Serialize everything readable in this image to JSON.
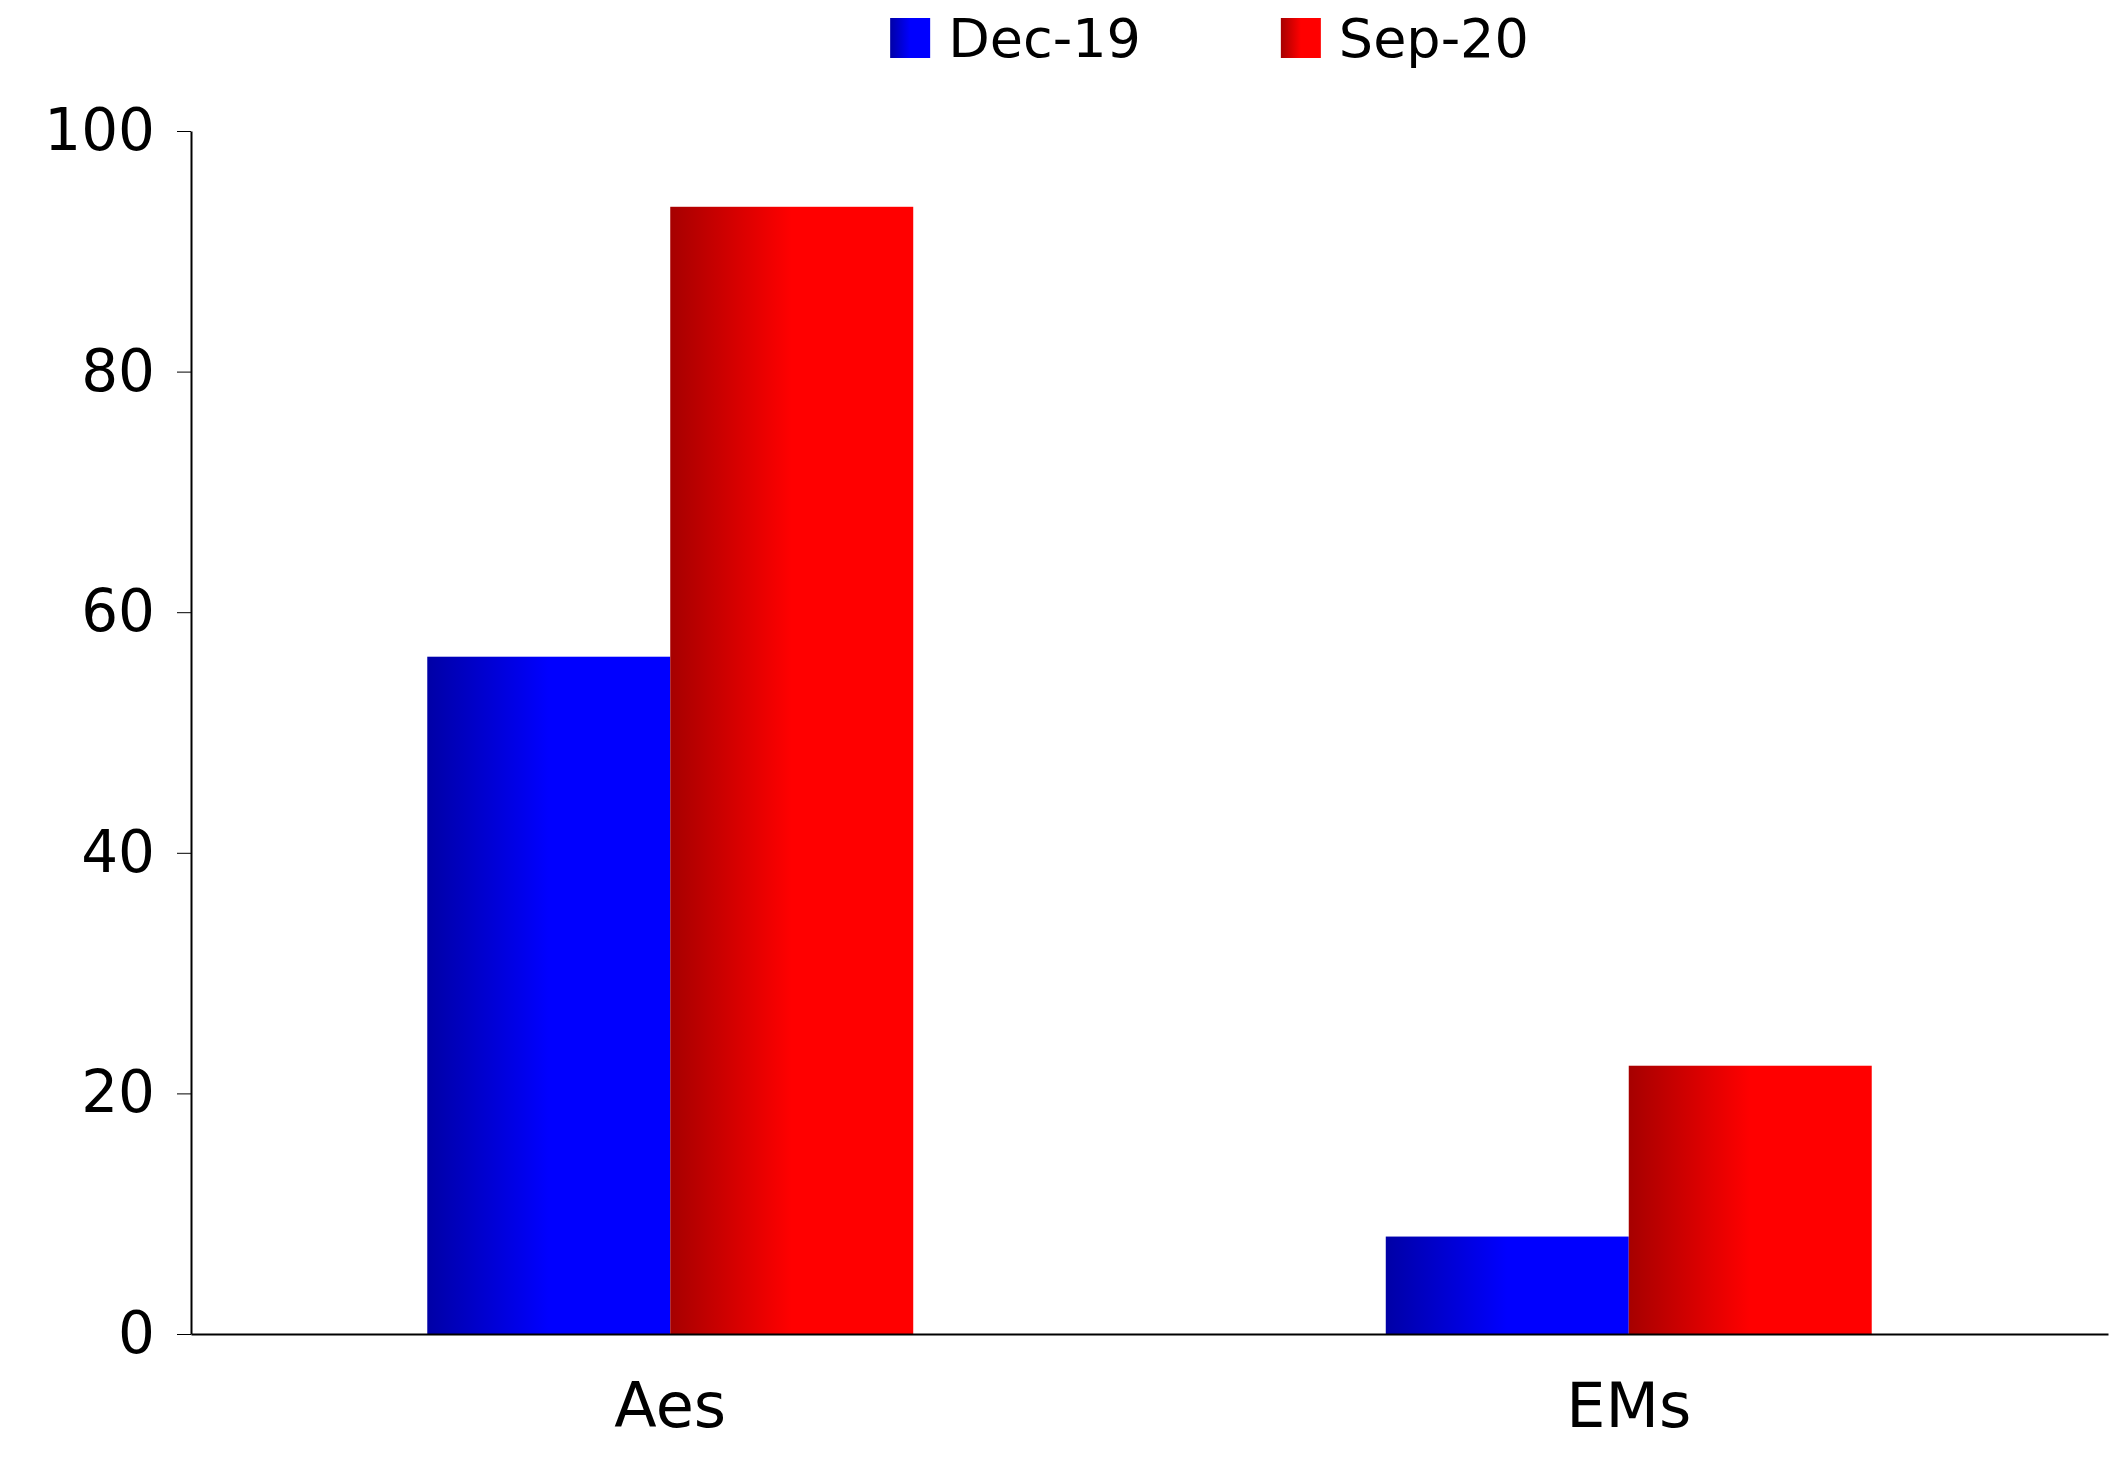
{
  "chart_data": {
    "type": "bar",
    "categories": [
      "Aes",
      "EMs"
    ],
    "series": [
      {
        "name": "Dec-19",
        "color": "#0000ff",
        "values": [
          56.3,
          8.1
        ]
      },
      {
        "name": "Sep-20",
        "color": "#ff0000",
        "values": [
          93.7,
          22.3
        ]
      }
    ],
    "ylim": [
      0,
      100
    ],
    "yticks": [
      0,
      20,
      40,
      60,
      80,
      100
    ],
    "grid": false,
    "legend": "top"
  }
}
